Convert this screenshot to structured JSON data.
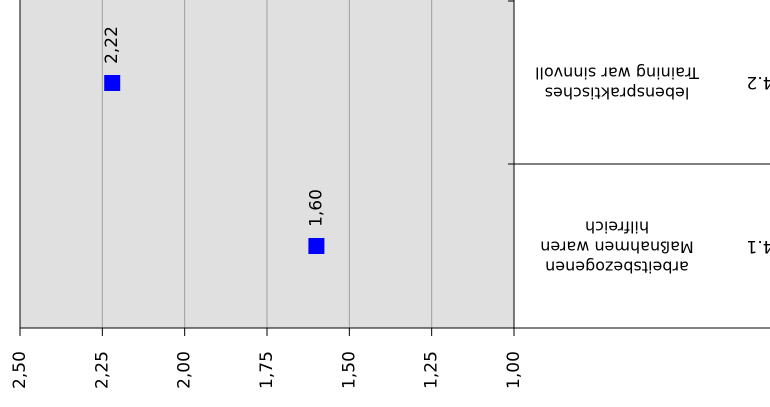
{
  "chart_data": {
    "type": "scatter",
    "orientation": "rotated-180",
    "categories": [
      {
        "id": "4.1",
        "label_lines": [
          "arbeitsbezogenen",
          "Maßnahmen waren",
          "hilfreich"
        ]
      },
      {
        "id": "4.2",
        "label_lines": [
          "lebenspraktisches",
          "Training war sinnvoll"
        ]
      }
    ],
    "series": [
      {
        "values": [
          1.6,
          2.22
        ],
        "labels": [
          "1,60",
          "2,22"
        ],
        "color": "#0000ff",
        "marker": "square"
      }
    ],
    "x_axis": {
      "range": [
        1.0,
        2.5
      ],
      "ticks": [
        1.0,
        1.25,
        1.5,
        1.75,
        2.0,
        2.25,
        2.5
      ],
      "tick_labels": [
        "1,00",
        "1,25",
        "1,50",
        "1,75",
        "2,00",
        "2,25",
        "2,50"
      ],
      "direction": "reversed"
    },
    "grid": true,
    "plot_background": "#e0e0e0",
    "gridline_color": "#a0a0a0"
  }
}
